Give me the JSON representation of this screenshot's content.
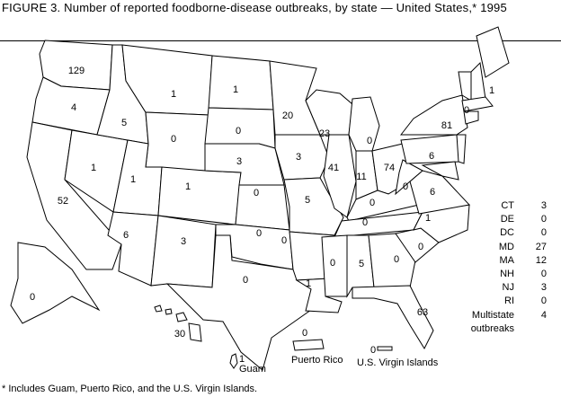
{
  "title": "FIGURE 3. Number of reported foodborne-disease outbreaks, by state — United States,* 1995",
  "states": [
    {
      "abbr": "WA",
      "value": 129
    },
    {
      "abbr": "OR",
      "value": 4
    },
    {
      "abbr": "CA",
      "value": 52
    },
    {
      "abbr": "NV",
      "value": 1
    },
    {
      "abbr": "ID",
      "value": 5
    },
    {
      "abbr": "MT",
      "value": 1
    },
    {
      "abbr": "WY",
      "value": 0
    },
    {
      "abbr": "UT",
      "value": 1
    },
    {
      "abbr": "CO",
      "value": 1
    },
    {
      "abbr": "AZ",
      "value": 6
    },
    {
      "abbr": "NM",
      "value": 3
    },
    {
      "abbr": "ND",
      "value": 1
    },
    {
      "abbr": "SD",
      "value": 0
    },
    {
      "abbr": "NE",
      "value": 3
    },
    {
      "abbr": "KS",
      "value": 0
    },
    {
      "abbr": "OK",
      "value": 0
    },
    {
      "abbr": "TX",
      "value": 0
    },
    {
      "abbr": "MN",
      "value": 20
    },
    {
      "abbr": "IA",
      "value": 3
    },
    {
      "abbr": "MO",
      "value": 5
    },
    {
      "abbr": "AR",
      "value": 0
    },
    {
      "abbr": "LA",
      "value": 1
    },
    {
      "abbr": "WI",
      "value": 23
    },
    {
      "abbr": "IL",
      "value": 41
    },
    {
      "abbr": "MI",
      "value": 0
    },
    {
      "abbr": "IN",
      "value": 11
    },
    {
      "abbr": "OH",
      "value": 74
    },
    {
      "abbr": "KY",
      "value": 0
    },
    {
      "abbr": "TN",
      "value": 0
    },
    {
      "abbr": "MS",
      "value": 0
    },
    {
      "abbr": "AL",
      "value": 5
    },
    {
      "abbr": "GA",
      "value": 0
    },
    {
      "abbr": "FL",
      "value": 63
    },
    {
      "abbr": "SC",
      "value": 0
    },
    {
      "abbr": "NC",
      "value": 1
    },
    {
      "abbr": "VA",
      "value": 6
    },
    {
      "abbr": "WV",
      "value": 0
    },
    {
      "abbr": "PA",
      "value": 6
    },
    {
      "abbr": "NY",
      "value": 81
    },
    {
      "abbr": "VT",
      "value": 0
    },
    {
      "abbr": "ME",
      "value": 1
    },
    {
      "abbr": "AK",
      "value": 0
    },
    {
      "abbr": "HI",
      "value": 30
    }
  ],
  "legend": [
    {
      "label": "CT",
      "value": "3"
    },
    {
      "label": "DE",
      "value": "0"
    },
    {
      "label": "DC",
      "value": "0"
    },
    {
      "label": "MD",
      "value": "27"
    },
    {
      "label": "MA",
      "value": "12"
    },
    {
      "label": "NH",
      "value": "0"
    },
    {
      "label": "NJ",
      "value": "3"
    },
    {
      "label": "RI",
      "value": "0"
    },
    {
      "label": "Multistate",
      "value": "4",
      "label2": "outbreaks"
    }
  ],
  "territories": {
    "guam": {
      "name": "Guam",
      "value": "1"
    },
    "puerto_rico": {
      "name": "Puerto Rico",
      "value": "0"
    },
    "virgin_islands": {
      "name": "U.S. Virgin Islands",
      "value": "0"
    }
  },
  "footnote": "* Includes Guam, Puerto Rico, and the U.S. Virgin Islands."
}
